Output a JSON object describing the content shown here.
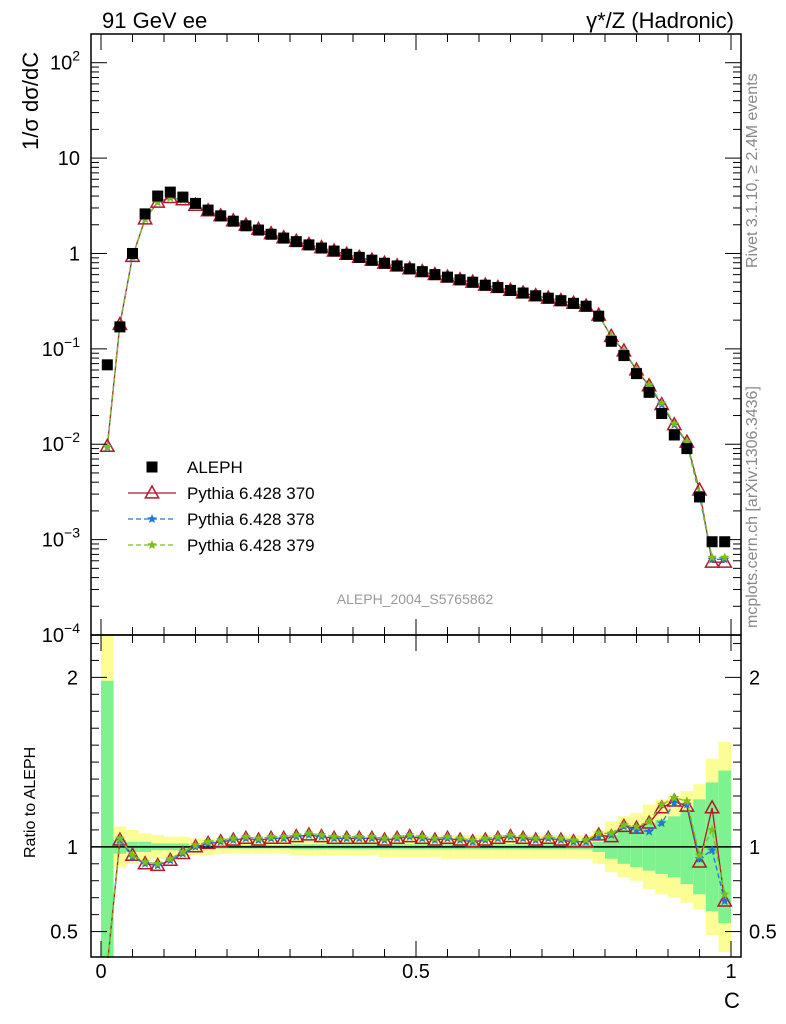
{
  "header": {
    "left_title": "91 GeV ee",
    "right_title": "γ*/Z (Hadronic)",
    "rivet_label": "Rivet 3.1.10, ≥ 2.4M events",
    "source_label": "mcplots.cern.ch [arXiv:1306.3436]"
  },
  "colors": {
    "data": "#000000",
    "p370": "#b2182b",
    "p378": "#1f78d1",
    "p379": "#7cbf1a",
    "band_inner": "#7df28f",
    "band_outer": "#fdfd96"
  },
  "chart_data": [
    {
      "type": "scatter",
      "title": "",
      "xlabel": "C",
      "ylabel": "1/σ  dσ/dC",
      "analysis_label": "ALEPH_2004_S5765862",
      "xlim": [
        0,
        1
      ],
      "ylim": [
        0.0001,
        200
      ],
      "yscale": "log",
      "y_ticks": [
        "10^-4",
        "10^-3",
        "10^-2",
        "10^-1",
        "1",
        "10",
        "10^2"
      ],
      "x": [
        0.01,
        0.03,
        0.05,
        0.07,
        0.09,
        0.11,
        0.13,
        0.15,
        0.17,
        0.19,
        0.21,
        0.23,
        0.25,
        0.27,
        0.29,
        0.31,
        0.33,
        0.35,
        0.37,
        0.39,
        0.41,
        0.43,
        0.45,
        0.47,
        0.49,
        0.51,
        0.53,
        0.55,
        0.57,
        0.59,
        0.61,
        0.63,
        0.65,
        0.67,
        0.69,
        0.71,
        0.73,
        0.75,
        0.77,
        0.79,
        0.81,
        0.83,
        0.85,
        0.87,
        0.89,
        0.91,
        0.93,
        0.95,
        0.97,
        0.99
      ],
      "legend": {
        "position": "lower-left",
        "entries": [
          "ALEPH",
          "Pythia 6.428 370",
          "Pythia 6.428 378",
          "Pythia 6.428 379"
        ]
      },
      "series": [
        {
          "name": "ALEPH",
          "marker": "square",
          "values": [
            0.068,
            0.17,
            1.0,
            2.6,
            4.0,
            4.4,
            3.9,
            3.35,
            2.85,
            2.48,
            2.18,
            1.95,
            1.76,
            1.59,
            1.45,
            1.33,
            1.23,
            1.14,
            1.06,
            0.98,
            0.91,
            0.85,
            0.79,
            0.74,
            0.69,
            0.645,
            0.6,
            0.565,
            0.53,
            0.5,
            0.465,
            0.44,
            0.41,
            0.385,
            0.36,
            0.34,
            0.32,
            0.3,
            0.28,
            0.22,
            0.12,
            0.085,
            0.055,
            0.035,
            0.021,
            0.0125,
            0.009,
            0.0028,
            0.00095,
            0.00095
          ]
        },
        {
          "name": "Pythia 6.428 370",
          "marker": "triangle",
          "values": [
            0.0095,
            0.18,
            0.93,
            2.3,
            3.45,
            3.85,
            3.65,
            3.2,
            2.8,
            2.48,
            2.2,
            1.98,
            1.79,
            1.61,
            1.46,
            1.34,
            1.24,
            1.15,
            1.06,
            0.98,
            0.91,
            0.85,
            0.79,
            0.74,
            0.69,
            0.645,
            0.6,
            0.565,
            0.53,
            0.5,
            0.465,
            0.44,
            0.41,
            0.385,
            0.36,
            0.34,
            0.32,
            0.3,
            0.28,
            0.225,
            0.135,
            0.095,
            0.06,
            0.041,
            0.026,
            0.016,
            0.0105,
            0.0033,
            0.00058,
            0.00058
          ]
        },
        {
          "name": "Pythia 6.428 378",
          "marker": "star",
          "values": [
            0.0093,
            0.18,
            0.92,
            2.3,
            3.45,
            3.85,
            3.65,
            3.2,
            2.8,
            2.48,
            2.2,
            1.98,
            1.79,
            1.61,
            1.46,
            1.34,
            1.24,
            1.15,
            1.06,
            0.98,
            0.91,
            0.85,
            0.79,
            0.74,
            0.69,
            0.645,
            0.6,
            0.565,
            0.53,
            0.5,
            0.465,
            0.44,
            0.41,
            0.385,
            0.36,
            0.34,
            0.32,
            0.3,
            0.28,
            0.225,
            0.134,
            0.094,
            0.06,
            0.041,
            0.026,
            0.016,
            0.0103,
            0.0029,
            0.00062,
            0.00062
          ]
        },
        {
          "name": "Pythia 6.428 379",
          "marker": "star",
          "values": [
            0.0094,
            0.18,
            0.925,
            2.3,
            3.45,
            3.85,
            3.65,
            3.2,
            2.8,
            2.48,
            2.2,
            1.98,
            1.79,
            1.61,
            1.46,
            1.34,
            1.24,
            1.15,
            1.06,
            0.98,
            0.91,
            0.85,
            0.79,
            0.74,
            0.69,
            0.645,
            0.6,
            0.565,
            0.53,
            0.5,
            0.465,
            0.44,
            0.41,
            0.385,
            0.36,
            0.34,
            0.32,
            0.3,
            0.28,
            0.226,
            0.135,
            0.095,
            0.061,
            0.042,
            0.027,
            0.0165,
            0.0106,
            0.0031,
            0.00065,
            0.00065
          ]
        }
      ]
    },
    {
      "type": "line",
      "title": "",
      "xlabel": "C",
      "ylabel": "Ratio to ALEPH",
      "xlim": [
        0,
        1
      ],
      "ylim": [
        0.35,
        2.25
      ],
      "x_ticks": [
        "0",
        "0.5",
        "1"
      ],
      "y_ticks": [
        "0.5",
        "1",
        "2"
      ],
      "x": [
        0.01,
        0.03,
        0.05,
        0.07,
        0.09,
        0.11,
        0.13,
        0.15,
        0.17,
        0.19,
        0.21,
        0.23,
        0.25,
        0.27,
        0.29,
        0.31,
        0.33,
        0.35,
        0.37,
        0.39,
        0.41,
        0.43,
        0.45,
        0.47,
        0.49,
        0.51,
        0.53,
        0.55,
        0.57,
        0.59,
        0.61,
        0.63,
        0.65,
        0.67,
        0.69,
        0.71,
        0.73,
        0.75,
        0.77,
        0.79,
        0.81,
        0.83,
        0.85,
        0.87,
        0.89,
        0.91,
        0.93,
        0.95,
        0.97,
        0.99
      ],
      "bands": {
        "stat_lower": [
          0.35,
          0.96,
          0.97,
          0.97,
          0.98,
          0.98,
          0.98,
          0.99,
          0.99,
          0.99,
          0.99,
          0.99,
          0.99,
          0.99,
          0.99,
          0.985,
          0.985,
          0.985,
          0.985,
          0.985,
          0.985,
          0.985,
          0.985,
          0.985,
          0.985,
          0.985,
          0.985,
          0.985,
          0.985,
          0.985,
          0.985,
          0.985,
          0.985,
          0.985,
          0.985,
          0.985,
          0.985,
          0.985,
          0.985,
          0.97,
          0.93,
          0.9,
          0.88,
          0.86,
          0.84,
          0.82,
          0.78,
          0.72,
          0.62,
          0.55
        ],
        "stat_upper": [
          1.98,
          1.04,
          1.03,
          1.03,
          1.02,
          1.02,
          1.02,
          1.01,
          1.01,
          1.01,
          1.01,
          1.01,
          1.01,
          1.01,
          1.01,
          1.015,
          1.015,
          1.015,
          1.015,
          1.015,
          1.015,
          1.015,
          1.015,
          1.015,
          1.015,
          1.015,
          1.015,
          1.015,
          1.015,
          1.015,
          1.015,
          1.015,
          1.015,
          1.015,
          1.015,
          1.015,
          1.015,
          1.015,
          1.015,
          1.03,
          1.07,
          1.1,
          1.12,
          1.14,
          1.16,
          1.18,
          1.22,
          1.28,
          1.38,
          1.45
        ],
        "total_lower": [
          0.35,
          0.88,
          0.9,
          0.92,
          0.93,
          0.94,
          0.94,
          0.95,
          0.95,
          0.96,
          0.96,
          0.96,
          0.96,
          0.96,
          0.96,
          0.95,
          0.95,
          0.95,
          0.95,
          0.95,
          0.95,
          0.95,
          0.94,
          0.94,
          0.94,
          0.94,
          0.94,
          0.93,
          0.93,
          0.93,
          0.93,
          0.93,
          0.93,
          0.93,
          0.93,
          0.93,
          0.93,
          0.93,
          0.93,
          0.9,
          0.85,
          0.82,
          0.8,
          0.75,
          0.72,
          0.7,
          0.67,
          0.63,
          0.48,
          0.38
        ],
        "total_upper": [
          2.25,
          1.12,
          1.1,
          1.08,
          1.07,
          1.06,
          1.06,
          1.05,
          1.05,
          1.04,
          1.04,
          1.04,
          1.04,
          1.04,
          1.04,
          1.05,
          1.05,
          1.05,
          1.05,
          1.05,
          1.05,
          1.05,
          1.06,
          1.06,
          1.06,
          1.06,
          1.06,
          1.07,
          1.07,
          1.07,
          1.07,
          1.07,
          1.07,
          1.07,
          1.07,
          1.07,
          1.07,
          1.07,
          1.07,
          1.1,
          1.15,
          1.18,
          1.2,
          1.25,
          1.28,
          1.3,
          1.33,
          1.37,
          1.52,
          1.62
        ]
      },
      "series": [
        {
          "name": "Pythia 6.428 370",
          "values": [
            0.14,
            1.04,
            0.95,
            0.9,
            0.89,
            0.92,
            0.96,
            1.0,
            1.02,
            1.03,
            1.04,
            1.05,
            1.04,
            1.05,
            1.05,
            1.06,
            1.07,
            1.06,
            1.05,
            1.05,
            1.05,
            1.05,
            1.04,
            1.05,
            1.06,
            1.05,
            1.04,
            1.05,
            1.04,
            1.03,
            1.04,
            1.05,
            1.06,
            1.05,
            1.04,
            1.05,
            1.04,
            1.03,
            1.03,
            1.07,
            1.06,
            1.12,
            1.11,
            1.14,
            1.23,
            1.27,
            1.24,
            0.91,
            1.23,
            0.68
          ]
        },
        {
          "name": "Pythia 6.428 378",
          "values": [
            0.13,
            1.04,
            0.94,
            0.9,
            0.89,
            0.92,
            0.96,
            1.0,
            1.02,
            1.03,
            1.04,
            1.05,
            1.04,
            1.05,
            1.05,
            1.06,
            1.07,
            1.06,
            1.05,
            1.05,
            1.05,
            1.05,
            1.04,
            1.05,
            1.06,
            1.05,
            1.04,
            1.05,
            1.04,
            1.03,
            1.04,
            1.05,
            1.06,
            1.05,
            1.04,
            1.05,
            1.04,
            1.03,
            1.03,
            1.06,
            1.07,
            1.12,
            1.1,
            1.09,
            1.14,
            1.26,
            1.25,
            0.93,
            0.98,
            0.68
          ]
        },
        {
          "name": "Pythia 6.428 379",
          "values": [
            0.14,
            1.05,
            0.95,
            0.91,
            0.9,
            0.93,
            0.97,
            1.01,
            1.03,
            1.04,
            1.05,
            1.06,
            1.05,
            1.06,
            1.06,
            1.07,
            1.08,
            1.07,
            1.06,
            1.06,
            1.06,
            1.06,
            1.05,
            1.06,
            1.07,
            1.06,
            1.05,
            1.06,
            1.05,
            1.04,
            1.05,
            1.06,
            1.07,
            1.06,
            1.05,
            1.06,
            1.05,
            1.04,
            1.04,
            1.08,
            1.08,
            1.13,
            1.12,
            1.15,
            1.25,
            1.29,
            1.27,
            0.95,
            1.1,
            0.72
          ]
        }
      ]
    }
  ]
}
